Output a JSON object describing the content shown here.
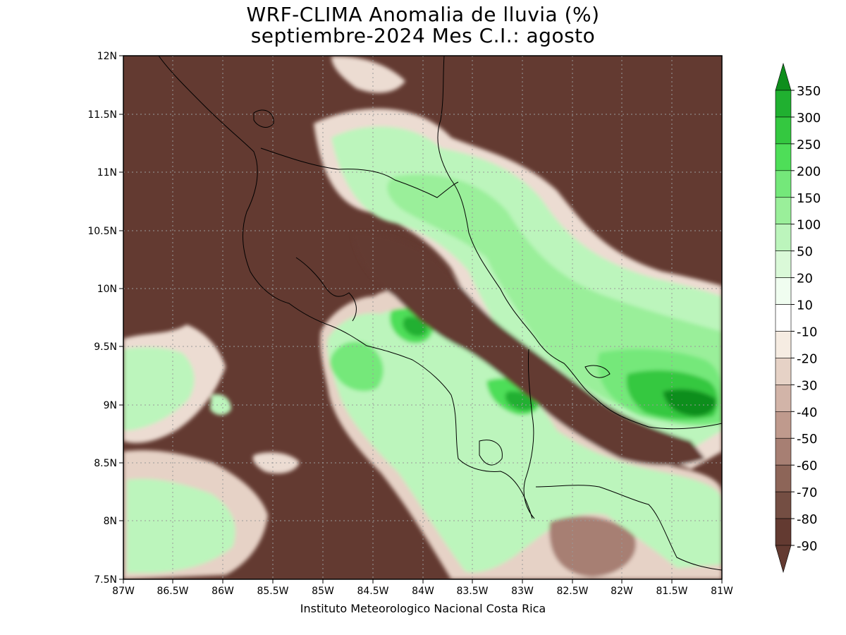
{
  "title": {
    "line1": "WRF-CLIMA Anomalia de lluvia (%)",
    "line2": "septiembre-2024 Mes C.I.: agosto"
  },
  "axes": {
    "y_ticks": [
      "12N",
      "11.5N",
      "11N",
      "10.5N",
      "10N",
      "9.5N",
      "9N",
      "8.5N",
      "8N",
      "7.5N"
    ],
    "x_ticks": [
      "87W",
      "86.5W",
      "86W",
      "85.5W",
      "85W",
      "84.5W",
      "84W",
      "83.5W",
      "83W",
      "82.5W",
      "82W",
      "81.5W",
      "81W"
    ]
  },
  "extent": {
    "lon_min": -87,
    "lon_max": -81,
    "lat_min": 7.5,
    "lat_max": 12
  },
  "colorbar": {
    "levels": [
      "350",
      "300",
      "250",
      "200",
      "150",
      "100",
      "50",
      "20",
      "10",
      "-10",
      "-20",
      "-30",
      "-40",
      "-50",
      "-60",
      "-70",
      "-80",
      "-90"
    ],
    "colors": [
      "#0e8e1c",
      "#20b030",
      "#34c840",
      "#4ede58",
      "#74e87a",
      "#9aef9a",
      "#bcf5bc",
      "#daf9d8",
      "#f0fdf0",
      "#ffffff",
      "#f6ece2",
      "#e6d2c6",
      "#d2b4a8",
      "#bf9a8d",
      "#a77f73",
      "#8d6558",
      "#744e43",
      "#633a31"
    ]
  },
  "credit": "Instituto Meteorologico Nacional Costa Rica"
}
